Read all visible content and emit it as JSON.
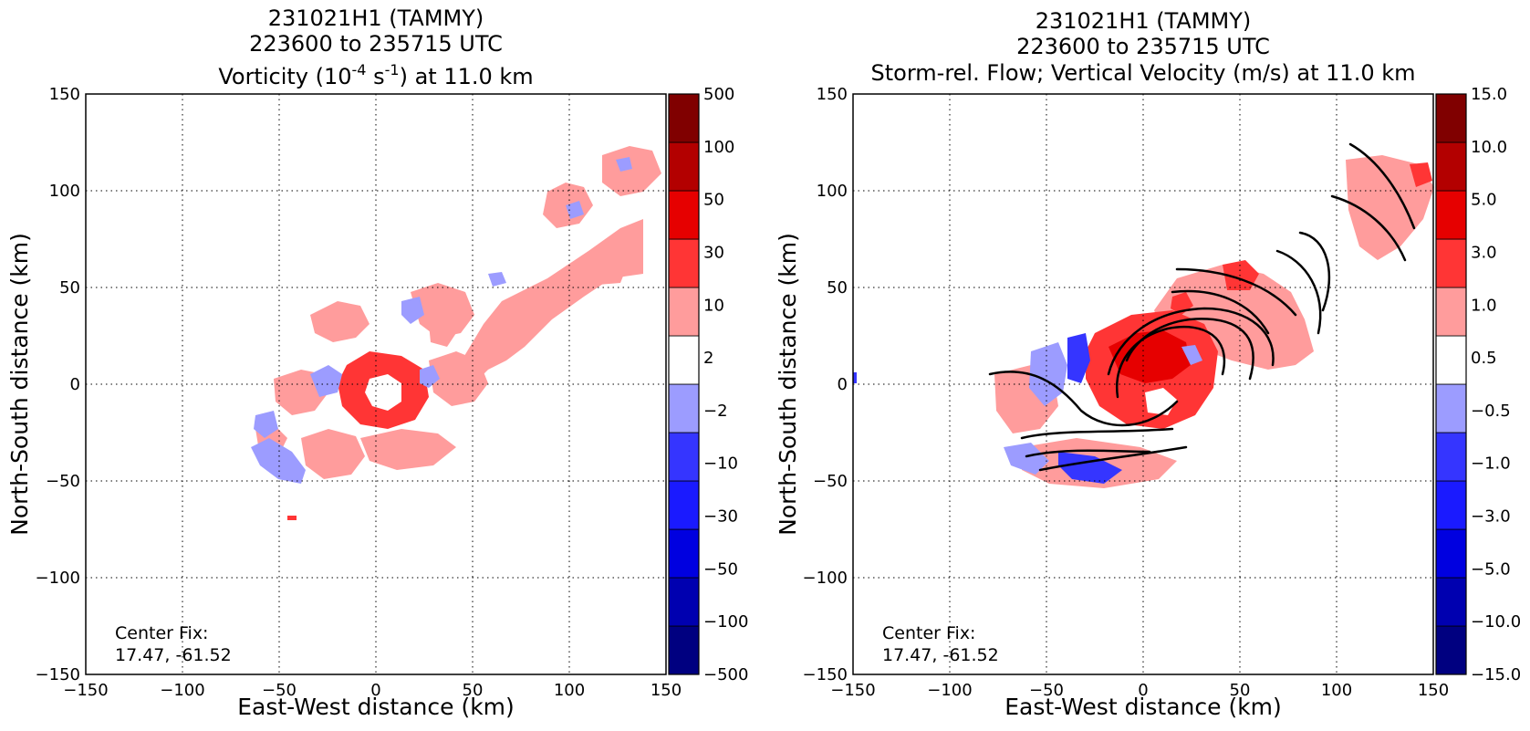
{
  "chart_data": [
    {
      "type": "heatmap",
      "title_lines": [
        "231021H1 (TAMMY)",
        "223600 to 235715 UTC"
      ],
      "title_var": "Vorticity (10",
      "title_sup1": "-4",
      "title_mid": " s",
      "title_sup2": "-1",
      "title_end": ") at 11.0 km",
      "xlabel": "East-West distance (km)",
      "ylabel": "North-South distance (km)",
      "xlim": [
        -150,
        150
      ],
      "ylim": [
        -150,
        150
      ],
      "xticks": [
        "−150",
        "−100",
        "−50",
        "0",
        "50",
        "100",
        "150"
      ],
      "yticks": [
        "−150",
        "−100",
        "−50",
        "0",
        "50",
        "100",
        "150"
      ],
      "grid": true,
      "annotation": {
        "line1": "Center Fix:",
        "line2": "17.47, -61.52"
      },
      "colorbar": {
        "levels": [
          "−500",
          "−100",
          "−50",
          "−30",
          "−10",
          "−2",
          "2",
          "10",
          "30",
          "50",
          "100",
          "500"
        ],
        "colors": [
          "#000080",
          "#0000b0",
          "#0000e0",
          "#1a1aff",
          "#3535ff",
          "#9c9cff",
          "#ffffff",
          "#ff9c9c",
          "#ff3535",
          "#e60000",
          "#b30000",
          "#800000"
        ]
      }
    },
    {
      "type": "heatmap",
      "title_lines": [
        "231021H1 (TAMMY)",
        "223600 to 235715 UTC",
        "Storm-rel. Flow; Vertical Velocity (m/s) at 11.0 km"
      ],
      "xlabel": "East-West distance (km)",
      "ylabel": "North-South distance (km)",
      "xlim": [
        -150,
        150
      ],
      "ylim": [
        -150,
        150
      ],
      "xticks": [
        "−150",
        "−100",
        "−50",
        "0",
        "50",
        "100",
        "150"
      ],
      "yticks": [
        "−150",
        "−100",
        "−50",
        "0",
        "50",
        "100",
        "150"
      ],
      "grid": true,
      "annotation": {
        "line1": "Center Fix:",
        "line2": "17.47, -61.52"
      },
      "colorbar": {
        "levels": [
          "−15.0",
          "−10.0",
          "−5.0",
          "−3.0",
          "−1.0",
          "−0.5",
          "0.5",
          "1.0",
          "3.0",
          "5.0",
          "10.0",
          "15.0"
        ],
        "colors": [
          "#000080",
          "#0000b0",
          "#0000e0",
          "#1a1aff",
          "#3535ff",
          "#9c9cff",
          "#ffffff",
          "#ff9c9c",
          "#ff3535",
          "#e60000",
          "#b30000",
          "#800000"
        ]
      }
    }
  ]
}
